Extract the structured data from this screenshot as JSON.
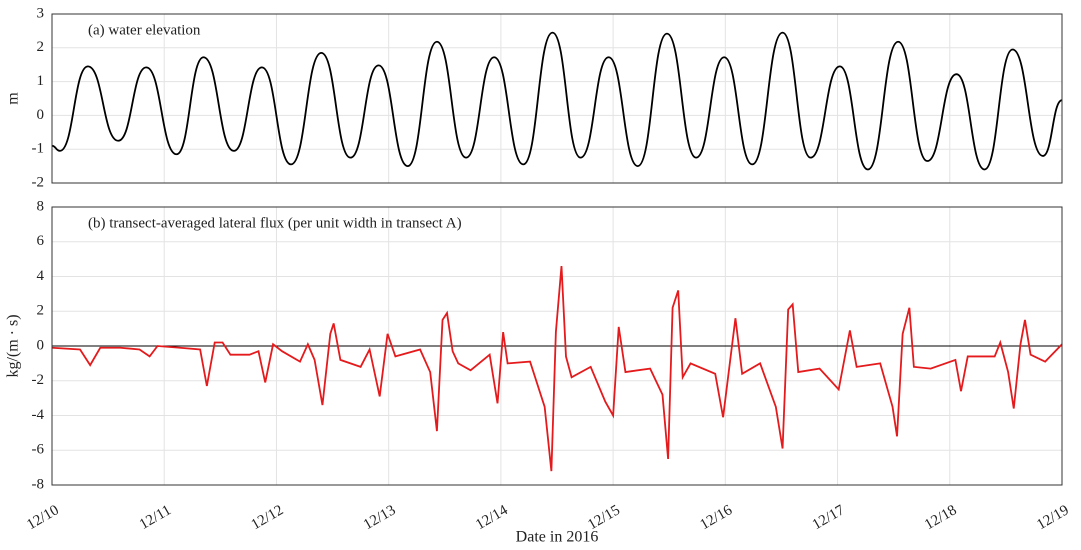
{
  "chart_data": [
    {
      "type": "line",
      "annotation": "(a) water elevation",
      "ylabel": "m",
      "x": [
        0,
        0.07,
        0.32,
        0.59,
        0.84,
        1.11,
        1.35,
        1.62,
        1.87,
        2.13,
        2.4,
        2.66,
        2.91,
        3.17,
        3.43,
        3.69,
        3.94,
        4.2,
        4.46,
        4.71,
        4.96,
        5.22,
        5.48,
        5.74,
        5.99,
        6.24,
        6.51,
        6.76,
        7.02,
        7.27,
        7.54,
        7.8,
        8.06,
        8.31,
        8.56,
        8.83,
        9.0
      ],
      "series": [
        {
          "color": "#000000",
          "values": [
            -0.9,
            -1.05,
            1.45,
            -0.75,
            1.42,
            -1.15,
            1.72,
            -1.05,
            1.42,
            -1.45,
            1.85,
            -1.25,
            1.48,
            -1.5,
            2.18,
            -1.25,
            1.72,
            -1.45,
            2.45,
            -1.25,
            1.72,
            -1.5,
            2.42,
            -1.25,
            1.72,
            -1.45,
            2.45,
            -1.25,
            1.45,
            -1.6,
            2.18,
            -1.35,
            1.22,
            -1.6,
            1.95,
            -1.2,
            0.45
          ]
        }
      ],
      "xlim": [
        0,
        9
      ],
      "ylim": [
        -2,
        3
      ],
      "yticks": [
        -2,
        -1,
        0,
        1,
        2,
        3
      ],
      "grid": true
    },
    {
      "type": "line",
      "annotation": "(b) transect-averaged lateral flux (per unit width in transect A)",
      "ylabel": "kg/(m · s)",
      "xlabel": "Date in 2016",
      "x": [
        0.0,
        0.25,
        0.34,
        0.43,
        0.61,
        0.78,
        0.87,
        0.94,
        1.14,
        1.32,
        1.38,
        1.45,
        1.52,
        1.59,
        1.76,
        1.84,
        1.9,
        1.97,
        2.05,
        2.21,
        2.28,
        2.34,
        2.41,
        2.48,
        2.51,
        2.57,
        2.75,
        2.83,
        2.92,
        2.99,
        3.06,
        3.28,
        3.37,
        3.43,
        3.48,
        3.52,
        3.57,
        3.62,
        3.73,
        3.9,
        3.97,
        4.02,
        4.06,
        4.26,
        4.39,
        4.45,
        4.49,
        4.54,
        4.58,
        4.63,
        4.8,
        4.93,
        5.0,
        5.05,
        5.11,
        5.33,
        5.44,
        5.49,
        5.53,
        5.58,
        5.62,
        5.69,
        5.91,
        5.98,
        6.09,
        6.15,
        6.31,
        6.45,
        6.51,
        6.56,
        6.6,
        6.65,
        6.84,
        7.01,
        7.11,
        7.17,
        7.38,
        7.49,
        7.53,
        7.58,
        7.64,
        7.68,
        7.83,
        8.05,
        8.1,
        8.16,
        8.4,
        8.45,
        8.52,
        8.57,
        8.63,
        8.67,
        8.72,
        8.85,
        9.0
      ],
      "series": [
        {
          "color": "#e41a1c",
          "values": [
            -0.1,
            -0.2,
            -1.1,
            -0.1,
            -0.1,
            -0.2,
            -0.6,
            0.0,
            -0.1,
            -0.2,
            -2.3,
            0.2,
            0.2,
            -0.5,
            -0.5,
            -0.3,
            -2.1,
            0.1,
            -0.3,
            -0.9,
            0.1,
            -0.8,
            -3.4,
            0.7,
            1.3,
            -0.8,
            -1.2,
            -0.2,
            -2.9,
            0.7,
            -0.6,
            -0.2,
            -1.5,
            -4.9,
            1.5,
            1.9,
            -0.3,
            -1.0,
            -1.4,
            -0.5,
            -3.3,
            0.8,
            -1.0,
            -0.9,
            -3.5,
            -7.2,
            0.8,
            4.6,
            -0.6,
            -1.8,
            -1.2,
            -3.2,
            -4.0,
            1.1,
            -1.5,
            -1.3,
            -2.8,
            -6.5,
            2.2,
            3.2,
            -1.8,
            -1.0,
            -1.6,
            -4.1,
            1.6,
            -1.6,
            -1.0,
            -3.5,
            -5.9,
            2.1,
            2.4,
            -1.5,
            -1.3,
            -2.5,
            0.9,
            -1.2,
            -1.0,
            -3.5,
            -5.2,
            0.7,
            2.2,
            -1.2,
            -1.3,
            -0.8,
            -2.6,
            -0.6,
            -0.6,
            0.2,
            -1.5,
            -3.6,
            0.1,
            1.5,
            -0.5,
            -0.9,
            0.1
          ]
        }
      ],
      "xlim": [
        0,
        9
      ],
      "ylim": [
        -8,
        8
      ],
      "yticks": [
        -8,
        -6,
        -4,
        -2,
        0,
        2,
        4,
        6,
        8
      ],
      "xticks": [
        {
          "value": 0,
          "label": "12/10"
        },
        {
          "value": 1,
          "label": "12/11"
        },
        {
          "value": 2,
          "label": "12/12"
        },
        {
          "value": 3,
          "label": "12/13"
        },
        {
          "value": 4,
          "label": "12/14"
        },
        {
          "value": 5,
          "label": "12/15"
        },
        {
          "value": 6,
          "label": "12/16"
        },
        {
          "value": 7,
          "label": "12/17"
        },
        {
          "value": 8,
          "label": "12/18"
        },
        {
          "value": 9,
          "label": "12/19"
        }
      ],
      "grid": true
    }
  ]
}
